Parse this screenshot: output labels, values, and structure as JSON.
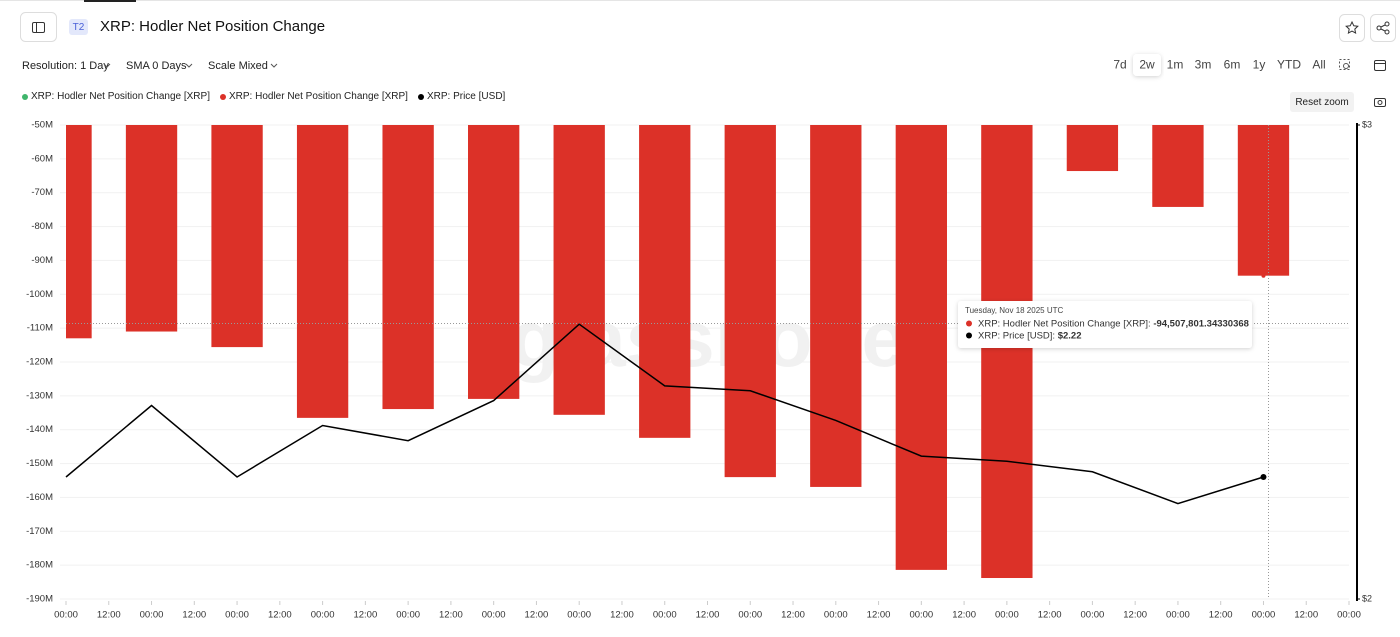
{
  "ui": {
    "badge": "T2",
    "resolution": "Resolution: 1 Day",
    "sma": "SMA 0 Days",
    "scale": "Scale Mixed",
    "ranges": [
      "7d",
      "2w",
      "1m",
      "3m",
      "6m",
      "1y",
      "YTD",
      "All"
    ],
    "reset_zoom": "Reset zoom",
    "watermark": "glassnode",
    "tooltip": {
      "date": "Tuesday, Nov 18 2025 UTC",
      "label1": "XRP: Hodler Net Position Change [XRP]:",
      "value1": "-94,507,801.34330368",
      "label2": "XRP: Price [USD]:",
      "value2": "$2.22"
    }
  },
  "chart_data": {
    "type": "bar",
    "title": "XRP: Hodler Net Position Change",
    "x": [
      0,
      24,
      48,
      72,
      96,
      120,
      144,
      168,
      192,
      216,
      240,
      264,
      288,
      312,
      336
    ],
    "xlim": [
      0,
      360
    ],
    "xticks": [
      {
        "value": 0,
        "label": "00:00"
      },
      {
        "value": 12,
        "label": "12:00"
      },
      {
        "value": 24,
        "label": "00:00"
      },
      {
        "value": 36,
        "label": "12:00"
      },
      {
        "value": 48,
        "label": "00:00"
      },
      {
        "value": 60,
        "label": "12:00"
      },
      {
        "value": 72,
        "label": "00:00"
      },
      {
        "value": 84,
        "label": "12:00"
      },
      {
        "value": 96,
        "label": "00:00"
      },
      {
        "value": 108,
        "label": "12:00"
      },
      {
        "value": 120,
        "label": "00:00"
      },
      {
        "value": 132,
        "label": "12:00"
      },
      {
        "value": 144,
        "label": "00:00"
      },
      {
        "value": 156,
        "label": "12:00"
      },
      {
        "value": 168,
        "label": "00:00"
      },
      {
        "value": 180,
        "label": "12:00"
      },
      {
        "value": 192,
        "label": "00:00"
      },
      {
        "value": 204,
        "label": "12:00"
      },
      {
        "value": 216,
        "label": "00:00"
      },
      {
        "value": 228,
        "label": "12:00"
      },
      {
        "value": 240,
        "label": "00:00"
      },
      {
        "value": 252,
        "label": "12:00"
      },
      {
        "value": 264,
        "label": "00:00"
      },
      {
        "value": 276,
        "label": "12:00"
      },
      {
        "value": 288,
        "label": "00:00"
      },
      {
        "value": 300,
        "label": "12:00"
      },
      {
        "value": 312,
        "label": "00:00"
      },
      {
        "value": 324,
        "label": "12:00"
      },
      {
        "value": 336,
        "label": "00:00"
      },
      {
        "value": 348,
        "label": "12:00"
      },
      {
        "value": 360,
        "label": "00:00"
      }
    ],
    "ylim": [
      -190000000,
      -50000000
    ],
    "yticks": [
      {
        "value": -50000000,
        "label": "-50M"
      },
      {
        "value": -60000000,
        "label": "-60M"
      },
      {
        "value": -70000000,
        "label": "-70M"
      },
      {
        "value": -80000000,
        "label": "-80M"
      },
      {
        "value": -90000000,
        "label": "-90M"
      },
      {
        "value": -100000000,
        "label": "-100M"
      },
      {
        "value": -110000000,
        "label": "-110M"
      },
      {
        "value": -120000000,
        "label": "-120M"
      },
      {
        "value": -130000000,
        "label": "-130M"
      },
      {
        "value": -140000000,
        "label": "-140M"
      },
      {
        "value": -150000000,
        "label": "-150M"
      },
      {
        "value": -160000000,
        "label": "-160M"
      },
      {
        "value": -170000000,
        "label": "-170M"
      },
      {
        "value": -180000000,
        "label": "-180M"
      },
      {
        "value": -190000000,
        "label": "-190M"
      }
    ],
    "y2lim": [
      2,
      3
    ],
    "y2log": true,
    "y2ticks": [
      {
        "value": 3,
        "label": "$3"
      },
      {
        "value": 2,
        "label": "$2"
      }
    ],
    "grid": true,
    "series": [
      {
        "name": "XRP: Hodler Net Position Change [XRP]",
        "color": "#3fb56b",
        "type": "bar",
        "values": [
          null,
          null,
          null,
          null,
          null,
          null,
          null,
          null,
          null,
          null,
          null,
          null,
          null,
          null,
          null
        ]
      },
      {
        "name": "XRP: Hodler Net Position Change [XRP]",
        "color": "#dc3128",
        "type": "bar",
        "values": [
          -113000000,
          -111000000,
          -115600000,
          -136500000,
          -133900000,
          -130900000,
          -135600000,
          -142400000,
          -154000000,
          -156900000,
          -181400000,
          -183800000,
          -63600000,
          -74200000,
          -94507801.34330368
        ]
      },
      {
        "name": "XRP: Price [USD]",
        "color": "#000000",
        "type": "line",
        "axis": "y2",
        "values": [
          2.22,
          2.36,
          2.22,
          2.32,
          2.29,
          2.37,
          2.53,
          2.4,
          2.39,
          2.33,
          2.26,
          2.25,
          2.23,
          2.17,
          2.22
        ]
      }
    ]
  }
}
